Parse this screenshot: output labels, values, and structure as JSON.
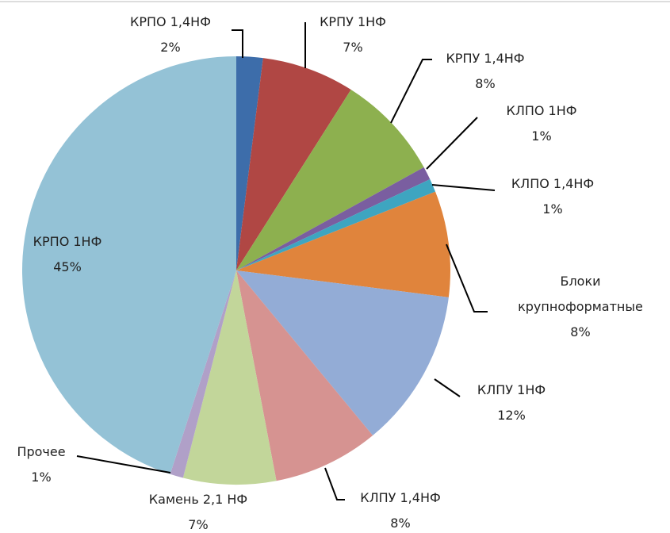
{
  "chart_data": {
    "type": "pie",
    "categories": [
      "КРПО 1,4НФ",
      "КРПУ 1НФ",
      "КРПУ 1,4НФ",
      "КЛПО 1НФ",
      "КЛПО 1,4НФ",
      "Блоки крупноформатные",
      "КЛПУ 1НФ",
      "КЛПУ 1,4НФ",
      "Камень 2,1 НФ",
      "Прочее",
      "КРПО 1НФ"
    ],
    "values": [
      2,
      7,
      8,
      1,
      1,
      8,
      12,
      8,
      7,
      1,
      45
    ],
    "value_labels": [
      "2%",
      "7%",
      "8%",
      "1%",
      "1%",
      "8%",
      "12%",
      "8%",
      "7%",
      "1%",
      "45%"
    ],
    "colors": [
      "#3d6daa",
      "#b04744",
      "#8db04f",
      "#7a5ea0",
      "#3ea5c0",
      "#e0843c",
      "#93acd6",
      "#d69391",
      "#c2d69a",
      "#b0a0c8",
      "#94c2d6"
    ]
  }
}
